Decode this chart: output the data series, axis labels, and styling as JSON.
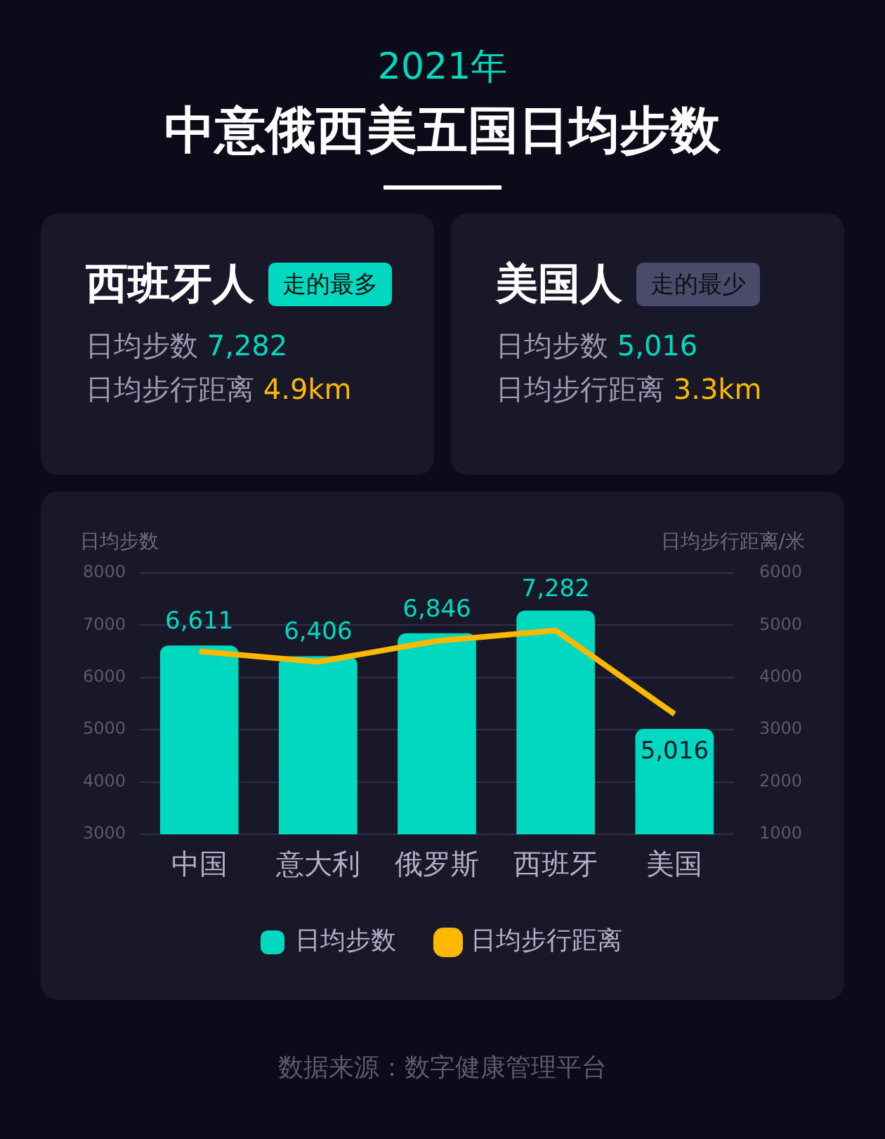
{
  "chart_data": [
    {
      "type": "other",
      "title": "中意俄西美五国日均步数",
      "subtitle": "2021年"
    },
    {
      "type": "other",
      "title": "西班牙人",
      "annotations": [
        "走的最多",
        "日均步数",
        "7,282",
        "日均步行距离",
        "4.9km"
      ]
    },
    {
      "type": "other",
      "title": "美国人",
      "annotations": [
        "走的最少",
        "日均步数",
        "5,016",
        "日均步行距离",
        "3.3km"
      ]
    },
    {
      "type": "bar",
      "categories": [
        "中国",
        "意大利",
        "俄罗斯",
        "西班牙",
        "美国"
      ],
      "series": [
        {
          "name": "日均步数",
          "type": "bar",
          "color": "#00d9c0",
          "values": [
            6611,
            6406,
            6846,
            7282,
            5016
          ],
          "value_labels": [
            "6,611",
            "6,406",
            "6,846",
            "7,282",
            "5,016"
          ]
        },
        {
          "name": "日均步行距离",
          "type": "line",
          "axis": "y2",
          "color": "#ffb800",
          "values": [
            4500,
            4300,
            4700,
            4900,
            3300
          ]
        }
      ],
      "ylabel": "日均步数",
      "y2label": "日均步行距离/米",
      "ylim": [
        3000,
        8000
      ],
      "yticks": [
        3000,
        4000,
        5000,
        6000,
        7000,
        8000
      ],
      "y2lim": [
        1000,
        6000
      ],
      "y2ticks": [
        1000,
        2000,
        3000,
        4000,
        5000,
        6000
      ],
      "grid": "y",
      "legend": "bottom",
      "marker": "none",
      "annotations": [
        "数据来源：数字健康管理平台"
      ]
    }
  ]
}
